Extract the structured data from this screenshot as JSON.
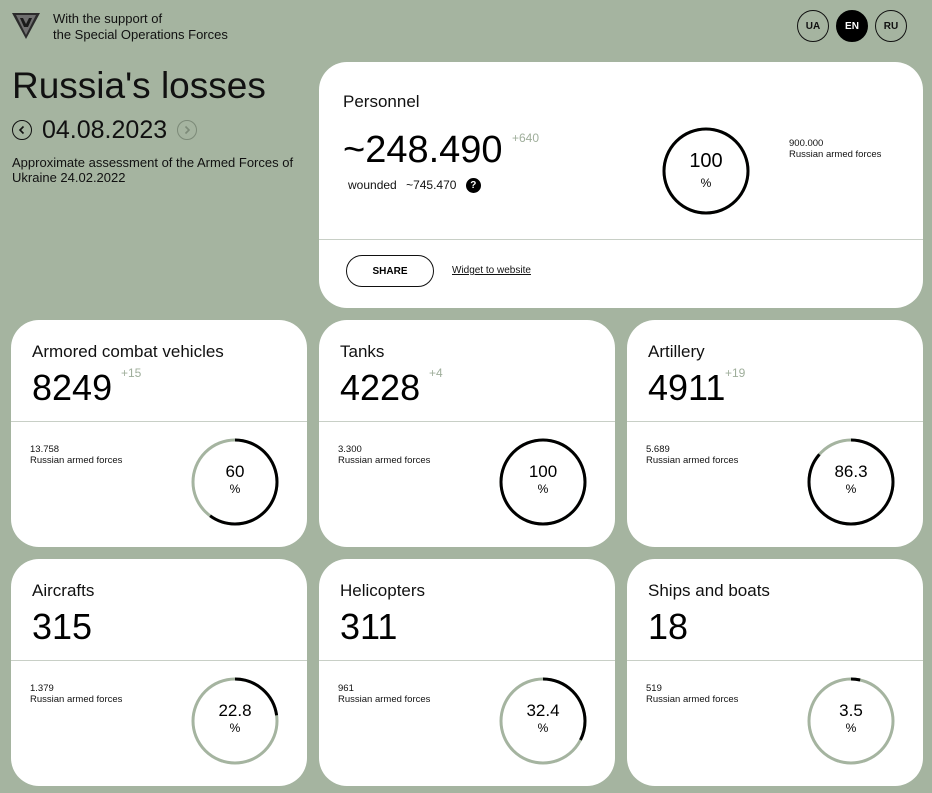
{
  "header": {
    "support_line1": "With the support of",
    "support_line2": "the Special Operations Forces",
    "languages": [
      "UA",
      "EN",
      "RU"
    ],
    "active_language": "EN"
  },
  "hero": {
    "title": "Russia's losses",
    "date": "04.08.2023",
    "subtitle": "Approximate assessment of the Armed Forces of Ukraine 24.02.2022"
  },
  "personnel": {
    "title": "Personnel",
    "value": "~248.490",
    "delta": "+640",
    "wounded_label": "wounded",
    "wounded_value": "~745.470",
    "help_icon": "?",
    "percent": "100",
    "percent_value": 100,
    "percent_sign": "%",
    "ref_number": "900.000",
    "ref_text": "Russian armed forces",
    "share_label": "SHARE",
    "widget_label": "Widget to website"
  },
  "cards": [
    {
      "title": "Armored combat vehicles",
      "value": "8249",
      "delta": "+15",
      "ref_number": "13.758",
      "ref_text": "Russian armed forces",
      "percent": "60",
      "percent_value": 60,
      "percent_sign": "%"
    },
    {
      "title": "Tanks",
      "value": "4228",
      "delta": "+4",
      "ref_number": "3.300",
      "ref_text": "Russian armed forces",
      "percent": "100",
      "percent_value": 100,
      "percent_sign": "%"
    },
    {
      "title": "Artillery",
      "value": "4911",
      "delta": "+19",
      "ref_number": "5.689",
      "ref_text": "Russian armed forces",
      "percent": "86.3",
      "percent_value": 86.3,
      "percent_sign": "%"
    },
    {
      "title": "Aircrafts",
      "value": "315",
      "delta": "",
      "ref_number": "1.379",
      "ref_text": "Russian armed forces",
      "percent": "22.8",
      "percent_value": 22.8,
      "percent_sign": "%"
    },
    {
      "title": "Helicopters",
      "value": "311",
      "delta": "",
      "ref_number": "961",
      "ref_text": "Russian armed forces",
      "percent": "32.4",
      "percent_value": 32.4,
      "percent_sign": "%"
    },
    {
      "title": "Ships and boats",
      "value": "18",
      "delta": "",
      "ref_number": "519",
      "ref_text": "Russian armed forces",
      "percent": "3.5",
      "percent_value": 3.5,
      "percent_sign": "%"
    }
  ],
  "colors": {
    "background": "#a5b4a0",
    "card": "#ffffff",
    "ring_track": "#a5b4a0",
    "ring_fill": "#000000",
    "delta": "#9fae9b"
  },
  "icons": {
    "logo": "spec-ops-emblem-icon",
    "prev": "chevron-left-icon",
    "next": "chevron-right-icon",
    "help": "question-icon"
  }
}
